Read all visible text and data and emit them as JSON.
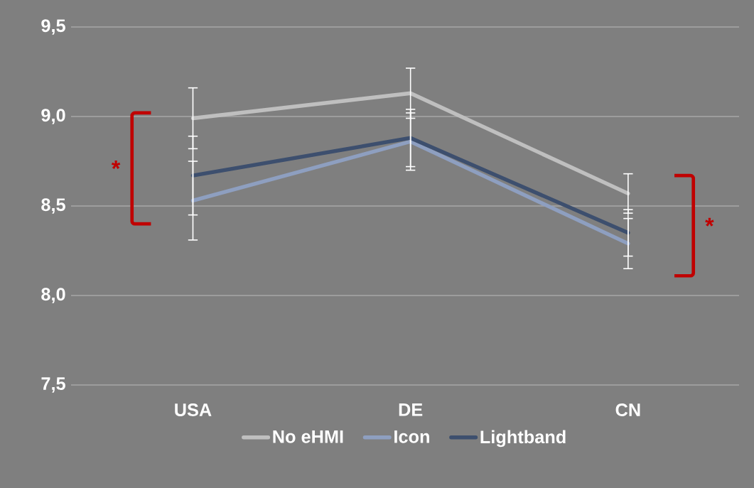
{
  "chart_data": {
    "type": "line",
    "categories": [
      "USA",
      "DE",
      "CN"
    ],
    "series": [
      {
        "name": "No eHMI",
        "color": "#bfbfbf",
        "values": [
          8.99,
          9.13,
          8.57
        ],
        "errors": [
          0.17,
          0.14,
          0.11
        ]
      },
      {
        "name": "Icon",
        "color": "#8e9fc0",
        "values": [
          8.53,
          8.86,
          8.29
        ],
        "errors": [
          0.22,
          0.16,
          0.14
        ]
      },
      {
        "name": "Lightband",
        "color": "#3d4f6e",
        "values": [
          8.67,
          8.88,
          8.35
        ],
        "errors": [
          0.22,
          0.16,
          0.13
        ]
      }
    ],
    "ylim": [
      7.5,
      9.5
    ],
    "yticks": [
      {
        "value": 7.5,
        "label": "7,5"
      },
      {
        "value": 8.0,
        "label": "8,0"
      },
      {
        "value": 8.5,
        "label": "8,5"
      },
      {
        "value": 9.0,
        "label": "9,0"
      },
      {
        "value": 9.5,
        "label": "9,5"
      }
    ],
    "grid": "y",
    "legend": "bottom",
    "marker": "none",
    "line_style": "solid",
    "annotations": [
      "*",
      "*"
    ]
  }
}
